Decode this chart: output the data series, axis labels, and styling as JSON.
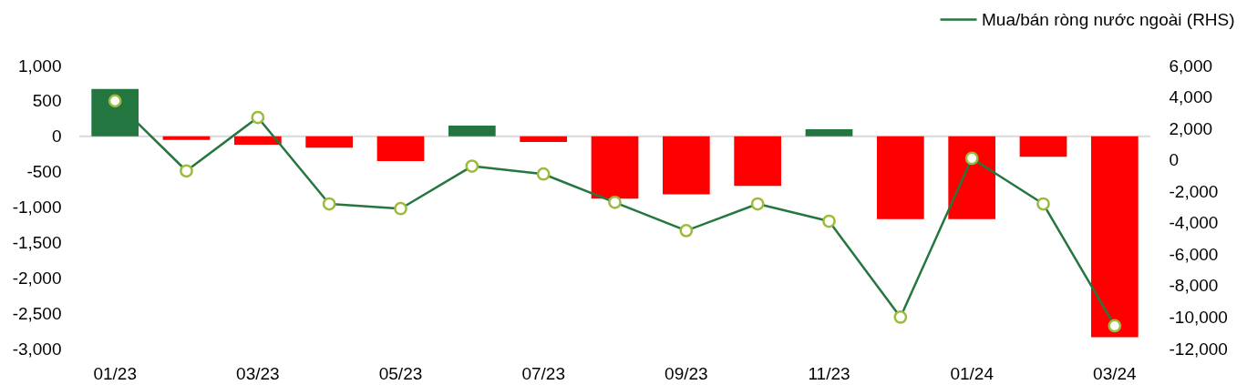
{
  "chart_data": {
    "type": "bar",
    "categories": [
      "01/23",
      null,
      "03/23",
      null,
      "05/23",
      null,
      "07/23",
      null,
      "09/23",
      null,
      "11/23",
      null,
      "01/24",
      null,
      "03/24"
    ],
    "series": [
      {
        "colors": [
          "#247640",
          "#ff0000",
          "#ff0000",
          "#ff0000",
          "#ff0000",
          "#247640",
          "#ff0000",
          "#ff0000",
          "#ff0000",
          "#ff0000",
          "#247640",
          "#ff0000",
          "#ff0000",
          "#ff0000",
          "#ff0000"
        ],
        "values": [
          670,
          -50,
          -120,
          -160,
          -350,
          150,
          -80,
          -880,
          -820,
          -700,
          100,
          -1170,
          -1170,
          -290,
          -2840
        ]
      },
      {
        "type": "line",
        "name": "Mua/bán ròng nước ngoài (RHS)",
        "color": "#25763f",
        "axis": "y2",
        "values": [
          3750,
          -700,
          2700,
          -2800,
          -3100,
          -400,
          -900,
          -2700,
          -4500,
          -2800,
          -3900,
          -10000,
          100,
          -2800,
          -10550
        ]
      }
    ],
    "ylim": [
      -3000,
      1000
    ],
    "yticks": [
      {
        "value": -3000,
        "label": "-3,000"
      },
      {
        "value": -2500,
        "label": "-2,500"
      },
      {
        "value": -2000,
        "label": "-2,000"
      },
      {
        "value": -1500,
        "label": "-1,500"
      },
      {
        "value": -1000,
        "label": "-1,000"
      },
      -500,
      0,
      500,
      {
        "value": 1000,
        "label": "1,000"
      }
    ],
    "y2lim": [
      -12000,
      6000
    ],
    "y2ticks": [
      {
        "value": -12000,
        "label": "-12,000"
      },
      {
        "value": -10000,
        "label": "-10,000"
      },
      {
        "value": -8000,
        "label": "-8,000"
      },
      {
        "value": -6000,
        "label": "-6,000"
      },
      {
        "value": -4000,
        "label": "-4,000"
      },
      {
        "value": -2000,
        "label": "-2,000"
      },
      0,
      {
        "value": 2000,
        "label": "2,000"
      },
      {
        "value": 4000,
        "label": "4,000"
      },
      {
        "value": 6000,
        "label": "6,000"
      }
    ],
    "ref_lines": [
      {
        "axis": "y",
        "value": 0,
        "color": "#d9d9d9"
      }
    ],
    "legend": "top right",
    "grid": false,
    "marker": "circle"
  }
}
